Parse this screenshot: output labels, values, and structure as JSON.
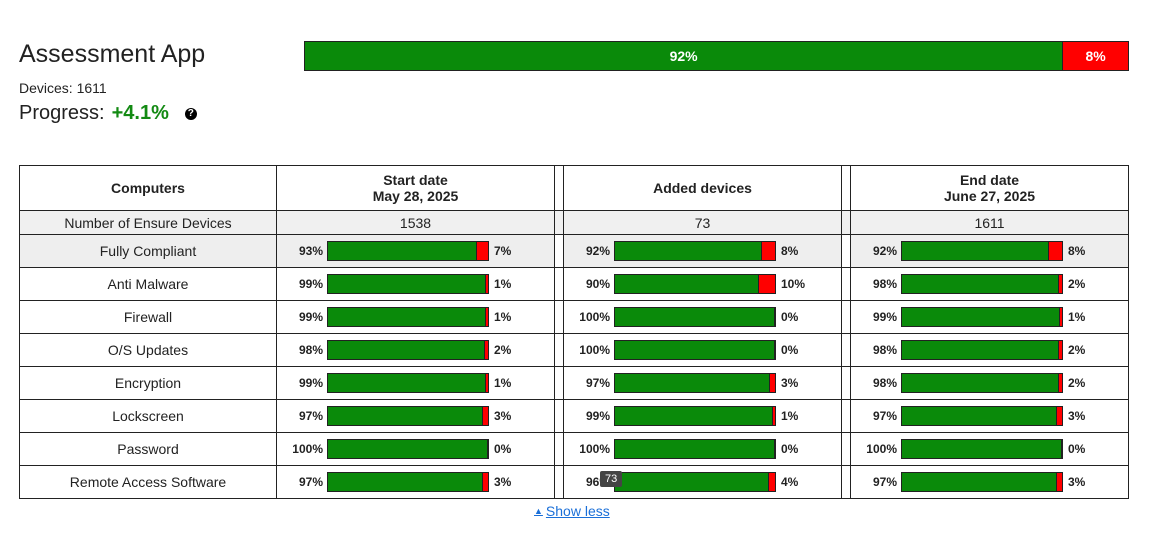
{
  "app": {
    "title": "Assessment App",
    "devices_label": "Devices: 1611",
    "progress_label": "Progress:",
    "progress_value": "+4.1%"
  },
  "overall": {
    "compliant_pct": 92,
    "noncompliant_pct": 8,
    "compliant_label": "92%",
    "noncompliant_label": "8%"
  },
  "table": {
    "header_label": "Computers",
    "columns": [
      {
        "line1": "Start date",
        "line2": "May 28, 2025"
      },
      {
        "line1": "Added devices",
        "line2": ""
      },
      {
        "line1": "End date",
        "line2": "June 27, 2025"
      }
    ],
    "count_row": {
      "label": "Number of Ensure Devices",
      "values": [
        "1538",
        "73",
        "1611"
      ]
    },
    "rows": [
      {
        "label": "Fully Compliant",
        "cells": [
          [
            93,
            "93%",
            "7%"
          ],
          [
            92,
            "92%",
            "8%"
          ],
          [
            92,
            "92%",
            "8%"
          ]
        ]
      },
      {
        "label": "Anti Malware",
        "cells": [
          [
            99,
            "99%",
            "1%"
          ],
          [
            90,
            "90%",
            "10%"
          ],
          [
            98,
            "98%",
            "2%"
          ]
        ]
      },
      {
        "label": "Firewall",
        "cells": [
          [
            99,
            "99%",
            "1%"
          ],
          [
            100,
            "100%",
            "0%"
          ],
          [
            99,
            "99%",
            "1%"
          ]
        ]
      },
      {
        "label": "O/S Updates",
        "cells": [
          [
            98,
            "98%",
            "2%"
          ],
          [
            100,
            "100%",
            "0%"
          ],
          [
            98,
            "98%",
            "2%"
          ]
        ]
      },
      {
        "label": "Encryption",
        "cells": [
          [
            99,
            "99%",
            "1%"
          ],
          [
            97,
            "97%",
            "3%"
          ],
          [
            98,
            "98%",
            "2%"
          ]
        ]
      },
      {
        "label": "Lockscreen",
        "cells": [
          [
            97,
            "97%",
            "3%"
          ],
          [
            99,
            "99%",
            "1%"
          ],
          [
            97,
            "97%",
            "3%"
          ]
        ]
      },
      {
        "label": "Password",
        "cells": [
          [
            100,
            "100%",
            "0%"
          ],
          [
            100,
            "100%",
            "0%"
          ],
          [
            100,
            "100%",
            "0%"
          ]
        ]
      },
      {
        "label": "Remote Access Software",
        "cells": [
          [
            97,
            "97%",
            "3%"
          ],
          [
            96,
            "96%",
            "4%"
          ],
          [
            97,
            "97%",
            "3%"
          ]
        ]
      }
    ]
  },
  "tooltip": "73",
  "show_less": "Show less",
  "colors": {
    "compliant": "#0a8a0a",
    "noncompliant": "#ff0000",
    "link": "#1a6fd8"
  }
}
